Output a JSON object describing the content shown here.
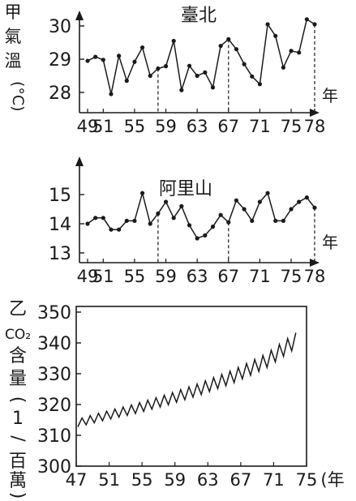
{
  "chart_data": [
    {
      "type": "line",
      "title": "臺北",
      "ylabel": "甲氣溫(°C)",
      "xlabel": "年",
      "x_tick_labels": [
        "49",
        "51",
        "55",
        "59",
        "63",
        "67",
        "71",
        "75",
        "78"
      ],
      "y_ticks": [
        28,
        29,
        30
      ],
      "ylim": [
        27.65,
        30.35
      ],
      "xlim": [
        49,
        78
      ],
      "x": [
        49,
        50,
        51,
        52,
        53,
        54,
        55,
        56,
        57,
        58,
        59,
        60,
        61,
        62,
        63,
        64,
        65,
        66,
        67,
        68,
        69,
        70,
        71,
        72,
        73,
        74,
        75,
        76,
        77,
        78
      ],
      "series": [
        {
          "values": [
            28.95,
            29.07,
            28.98,
            27.95,
            29.1,
            28.35,
            28.92,
            29.35,
            28.5,
            28.72,
            28.79,
            29.55,
            28.07,
            28.8,
            28.5,
            28.6,
            28.15,
            29.4,
            29.6,
            29.3,
            28.85,
            28.48,
            28.25,
            30.05,
            29.7,
            28.75,
            29.25,
            29.2,
            30.2,
            30.05
          ]
        }
      ],
      "dashed_markers_x": [
        58,
        67,
        78
      ],
      "grid": false
    },
    {
      "type": "line",
      "title": "阿里山",
      "xlabel": "年",
      "x_tick_labels": [
        "49",
        "51",
        "55",
        "59",
        "63",
        "67",
        "71",
        "75",
        "78"
      ],
      "y_ticks": [
        13,
        14,
        15
      ],
      "ylim": [
        13,
        15.55
      ],
      "xlim": [
        49,
        78
      ],
      "x": [
        49,
        50,
        51,
        52,
        53,
        54,
        55,
        56,
        57,
        58,
        59,
        60,
        61,
        62,
        63,
        64,
        65,
        66,
        67,
        68,
        69,
        70,
        71,
        72,
        73,
        74,
        75,
        76,
        77,
        78
      ],
      "series": [
        {
          "values": [
            14.0,
            14.2,
            14.2,
            13.8,
            13.8,
            14.1,
            14.1,
            15.05,
            14.0,
            14.35,
            14.75,
            14.2,
            14.6,
            13.95,
            13.5,
            13.6,
            13.9,
            14.3,
            14.05,
            14.8,
            14.5,
            14.1,
            14.75,
            15.05,
            14.1,
            14.1,
            14.5,
            14.75,
            14.9,
            14.55
          ]
        }
      ],
      "dashed_markers_x": [
        58,
        67,
        78
      ],
      "grid": false
    },
    {
      "type": "line",
      "ylabel": "乙CO₂含量(1/百萬)",
      "xlabel": "(年",
      "x_tick_labels": [
        "47",
        "51",
        "55",
        "59",
        "63",
        "67",
        "71",
        "75"
      ],
      "y_ticks": [
        300,
        310,
        320,
        330,
        340,
        350
      ],
      "ylim": [
        300,
        350
      ],
      "xlim": [
        47,
        75
      ],
      "series": [
        {
          "name": "",
          "trend": [
            [
              47.2,
              314
            ],
            [
              50,
              316
            ],
            [
              54,
              318.5
            ],
            [
              58,
              321.5
            ],
            [
              62,
              325
            ],
            [
              66,
              329
            ],
            [
              70,
              334
            ],
            [
              73.8,
              341
            ]
          ],
          "seasonal_amplitude": [
            2.5,
            5
          ]
        }
      ],
      "grid": false
    }
  ],
  "labels": {
    "chart1_ylabel_chars": [
      "甲",
      "氣",
      "溫"
    ],
    "chart1_unit": "(°C)",
    "chart3_ylabel_chars": [
      "乙",
      "CO₂",
      "含",
      "量",
      "(",
      "1",
      "/",
      "百",
      "萬",
      ")"
    ]
  },
  "colors": {
    "ink": "#1a1a1a",
    "background": "#ffffff"
  }
}
